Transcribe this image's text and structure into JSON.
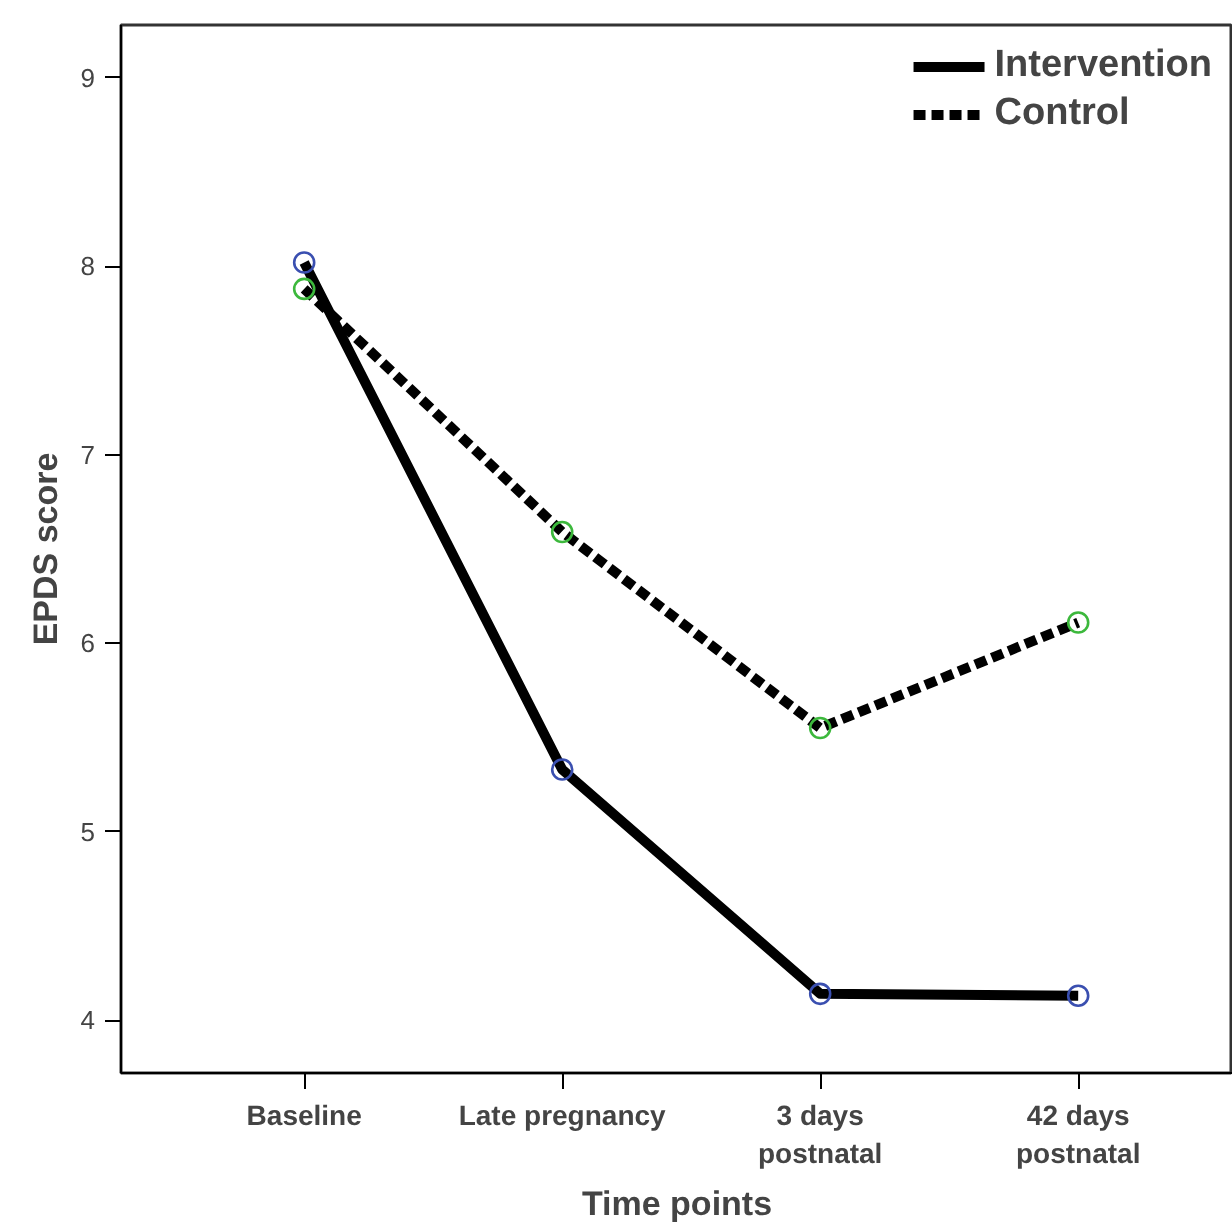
{
  "chart_data": {
    "type": "line",
    "xlabel": "Time points",
    "ylabel": "EPDS score",
    "categories": [
      "Baseline",
      "Late pregnancy",
      "3 days\npostnatal",
      "42 days\npostnatal"
    ],
    "series": [
      {
        "name": "Intervention",
        "color": "#000000",
        "colors": [
          "#3a4fb0",
          "#3a4fb0",
          "#3a4fb0",
          "#3a4fb0"
        ],
        "line_style": "solid",
        "values": [
          8.02,
          5.33,
          4.14,
          4.13
        ]
      },
      {
        "name": "Control",
        "color": "#000000",
        "colors": [
          "#3cb83c",
          "#3cb83c",
          "#3cb83c",
          "#3cb83c"
        ],
        "line_style": "dashed",
        "values": [
          7.88,
          6.59,
          5.55,
          6.11
        ]
      }
    ],
    "ylim": [
      3.72,
      9.28
    ],
    "yticks": [
      4,
      5,
      6,
      7,
      8,
      9
    ],
    "grid": false,
    "legend": "top right",
    "marker": "circle"
  }
}
